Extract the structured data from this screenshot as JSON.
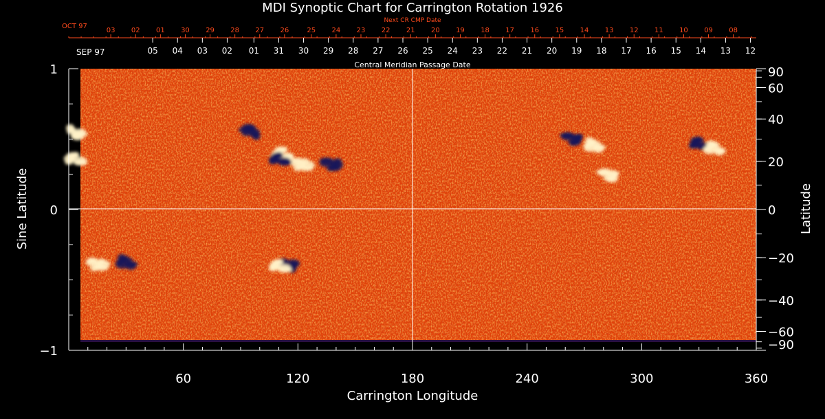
{
  "chart_data": {
    "type": "heatmap",
    "title": "MDI Synoptic Chart for Carrington Rotation 1926",
    "xlabel": "Carrington Longitude",
    "ylabel_left": "Sine Latitude",
    "ylabel_right": "Latitude",
    "top_axis_label": "Central Meridian Passage Date",
    "next_cr_label": "Next CR CMP Date",
    "xlim": [
      0,
      360
    ],
    "ylim": [
      -1,
      1
    ],
    "x_ticks": [
      60,
      120,
      180,
      240,
      300,
      360
    ],
    "y_ticks_left": [
      {
        "value": -1,
        "label": "−1"
      },
      {
        "value": 0,
        "label": "0"
      },
      {
        "value": 1,
        "label": "1"
      }
    ],
    "latitude_ticks": [
      {
        "deg": 90,
        "label": "90"
      },
      {
        "deg": 60,
        "label": "60"
      },
      {
        "deg": 40,
        "label": "40"
      },
      {
        "deg": 20,
        "label": "20"
      },
      {
        "deg": 0,
        "label": "0"
      },
      {
        "deg": -20,
        "label": "−20"
      },
      {
        "deg": -40,
        "label": "−40"
      },
      {
        "deg": -60,
        "label": "−60"
      },
      {
        "deg": -90,
        "label": "−90"
      }
    ],
    "cmp_dates": {
      "month_label": "SEP 97",
      "ticks": [
        {
          "lon": 49,
          "label": "05"
        },
        {
          "lon": 62,
          "label": "04"
        },
        {
          "lon": 75,
          "label": "03"
        },
        {
          "lon": 88,
          "label": "02"
        },
        {
          "lon": 102,
          "label": "01"
        },
        {
          "lon": 115,
          "label": "31"
        },
        {
          "lon": 128,
          "label": "30"
        },
        {
          "lon": 141,
          "label": "29"
        },
        {
          "lon": 154,
          "label": "28"
        },
        {
          "lon": 167,
          "label": "27"
        },
        {
          "lon": 180,
          "label": "26"
        },
        {
          "lon": 193,
          "label": "25"
        },
        {
          "lon": 206,
          "label": "24"
        },
        {
          "lon": 219,
          "label": "23"
        },
        {
          "lon": 232,
          "label": "22"
        },
        {
          "lon": 245,
          "label": "21"
        },
        {
          "lon": 258,
          "label": "20"
        },
        {
          "lon": 271,
          "label": "19"
        },
        {
          "lon": 284,
          "label": "18"
        },
        {
          "lon": 297,
          "label": "17"
        },
        {
          "lon": 310,
          "label": "16"
        },
        {
          "lon": 323,
          "label": "15"
        },
        {
          "lon": 336,
          "label": "14"
        },
        {
          "lon": 349,
          "label": "13"
        },
        {
          "lon": 362,
          "label": "12"
        }
      ]
    },
    "next_cr_dates": {
      "month_label": "OCT 97",
      "ticks": [
        {
          "lon": 22,
          "label": "03"
        },
        {
          "lon": 35,
          "label": "02"
        },
        {
          "lon": 48,
          "label": "01"
        },
        {
          "lon": 61,
          "label": "30"
        },
        {
          "lon": 74,
          "label": "29"
        },
        {
          "lon": 87,
          "label": "28"
        },
        {
          "lon": 100,
          "label": "27"
        },
        {
          "lon": 113,
          "label": "26"
        },
        {
          "lon": 127,
          "label": "25"
        },
        {
          "lon": 140,
          "label": "24"
        },
        {
          "lon": 153,
          "label": "23"
        },
        {
          "lon": 166,
          "label": "22"
        },
        {
          "lon": 179,
          "label": "21"
        },
        {
          "lon": 192,
          "label": "20"
        },
        {
          "lon": 205,
          "label": "19"
        },
        {
          "lon": 218,
          "label": "18"
        },
        {
          "lon": 231,
          "label": "17"
        },
        {
          "lon": 244,
          "label": "16"
        },
        {
          "lon": 257,
          "label": "15"
        },
        {
          "lon": 270,
          "label": "14"
        },
        {
          "lon": 283,
          "label": "13"
        },
        {
          "lon": 296,
          "label": "12"
        },
        {
          "lon": 309,
          "label": "11"
        },
        {
          "lon": 322,
          "label": "10"
        },
        {
          "lon": 335,
          "label": "09"
        },
        {
          "lon": 348,
          "label": "08"
        }
      ]
    },
    "colors": {
      "background": "#000000",
      "field_base": "#e0420a",
      "field_light": "#ff7a1e",
      "positive_polarity": "#fff2c8",
      "negative_polarity": "#141a5a",
      "axis": "#ffffff",
      "next_cr_text": "#ff4a1c"
    },
    "active_regions": [
      {
        "lon": 95,
        "sinlat": 0.55,
        "polarity": "negative"
      },
      {
        "lon": 112,
        "sinlat": 0.4,
        "polarity": "positive"
      },
      {
        "lon": 122,
        "sinlat": 0.32,
        "polarity": "positive"
      },
      {
        "lon": 110,
        "sinlat": 0.36,
        "polarity": "negative"
      },
      {
        "lon": 138,
        "sinlat": 0.32,
        "polarity": "negative"
      },
      {
        "lon": 264,
        "sinlat": 0.5,
        "polarity": "negative"
      },
      {
        "lon": 275,
        "sinlat": 0.46,
        "polarity": "positive"
      },
      {
        "lon": 283,
        "sinlat": 0.24,
        "polarity": "positive"
      },
      {
        "lon": 330,
        "sinlat": 0.47,
        "polarity": "negative"
      },
      {
        "lon": 338,
        "sinlat": 0.44,
        "polarity": "positive"
      },
      {
        "lon": 4,
        "sinlat": 0.55,
        "polarity": "positive"
      },
      {
        "lon": 3,
        "sinlat": 0.36,
        "polarity": "positive"
      },
      {
        "lon": 30,
        "sinlat": -0.37,
        "polarity": "negative"
      },
      {
        "lon": 15,
        "sinlat": -0.39,
        "polarity": "positive"
      },
      {
        "lon": 115,
        "sinlat": -0.4,
        "polarity": "negative"
      },
      {
        "lon": 110,
        "sinlat": -0.4,
        "polarity": "positive"
      }
    ]
  }
}
